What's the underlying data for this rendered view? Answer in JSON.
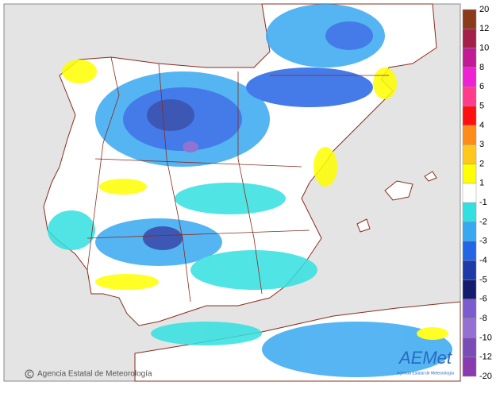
{
  "map": {
    "legend": {
      "labels": [
        "20",
        "12",
        "10",
        "8",
        "6",
        "5",
        "4",
        "3",
        "2",
        "1",
        "-1",
        "-2",
        "-3",
        "-4",
        "-5",
        "-6",
        "-8",
        "-10",
        "-12",
        "-20"
      ],
      "colors": [
        "#8b3a1a",
        "#a3204a",
        "#c21a95",
        "#ee22d2",
        "#ff3c8c",
        "#ff1010",
        "#ff8c1a",
        "#ffc81a",
        "#ffff00",
        "#ffffff",
        "#33e0e0",
        "#38a8f0",
        "#2464e6",
        "#1c3aa8",
        "#141c6e",
        "#7c5ccc",
        "#9470d4",
        "#7a4cb8",
        "#8a3ab0"
      ]
    },
    "credit": "Agencia Estatal de Meteorología",
    "logo": {
      "name": "AEMet",
      "subtitle": "Agencia Estatal de Meteorología"
    }
  }
}
